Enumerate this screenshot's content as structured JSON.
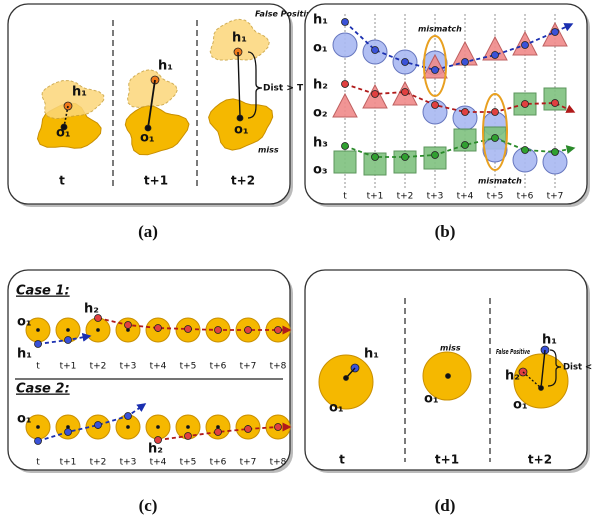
{
  "panel_a": {
    "caption": "(a)",
    "frames": [
      "t",
      "t+1",
      "t+2"
    ],
    "hyp": "h₁",
    "obj": "o₁",
    "false_positive": "False Positive",
    "dist": "Dist > T",
    "miss": "miss"
  },
  "panel_b": {
    "caption": "(b)",
    "frames": [
      "t",
      "t+1",
      "t+2",
      "t+3",
      "t+4",
      "t+5",
      "t+6",
      "t+7"
    ],
    "rows": [
      {
        "hyp": "h₁",
        "obj": "o₁"
      },
      {
        "hyp": "h₂",
        "obj": "o₂"
      },
      {
        "hyp": "h₃",
        "obj": "o₃"
      }
    ],
    "mismatch": "mismatch"
  },
  "panel_c": {
    "caption": "(c)",
    "frames": [
      "t",
      "t+1",
      "t+2",
      "t+3",
      "t+4",
      "t+5",
      "t+6",
      "t+7",
      "t+8"
    ],
    "cases": [
      {
        "title": "Case 1:",
        "obj": "o₁",
        "hyp_first": "h₁",
        "hyp_second": "h₂"
      },
      {
        "title": "Case 2:",
        "obj": "o₁",
        "hyp_second": "h₂"
      }
    ]
  },
  "panel_d": {
    "caption": "(d)",
    "frames": [
      "t",
      "t+1",
      "t+2"
    ],
    "hyp": "h₁",
    "hyp_false": "h₂",
    "obj": "o₁",
    "miss": "miss",
    "false_positive": "False Positive",
    "dist": "Dist < T"
  }
}
